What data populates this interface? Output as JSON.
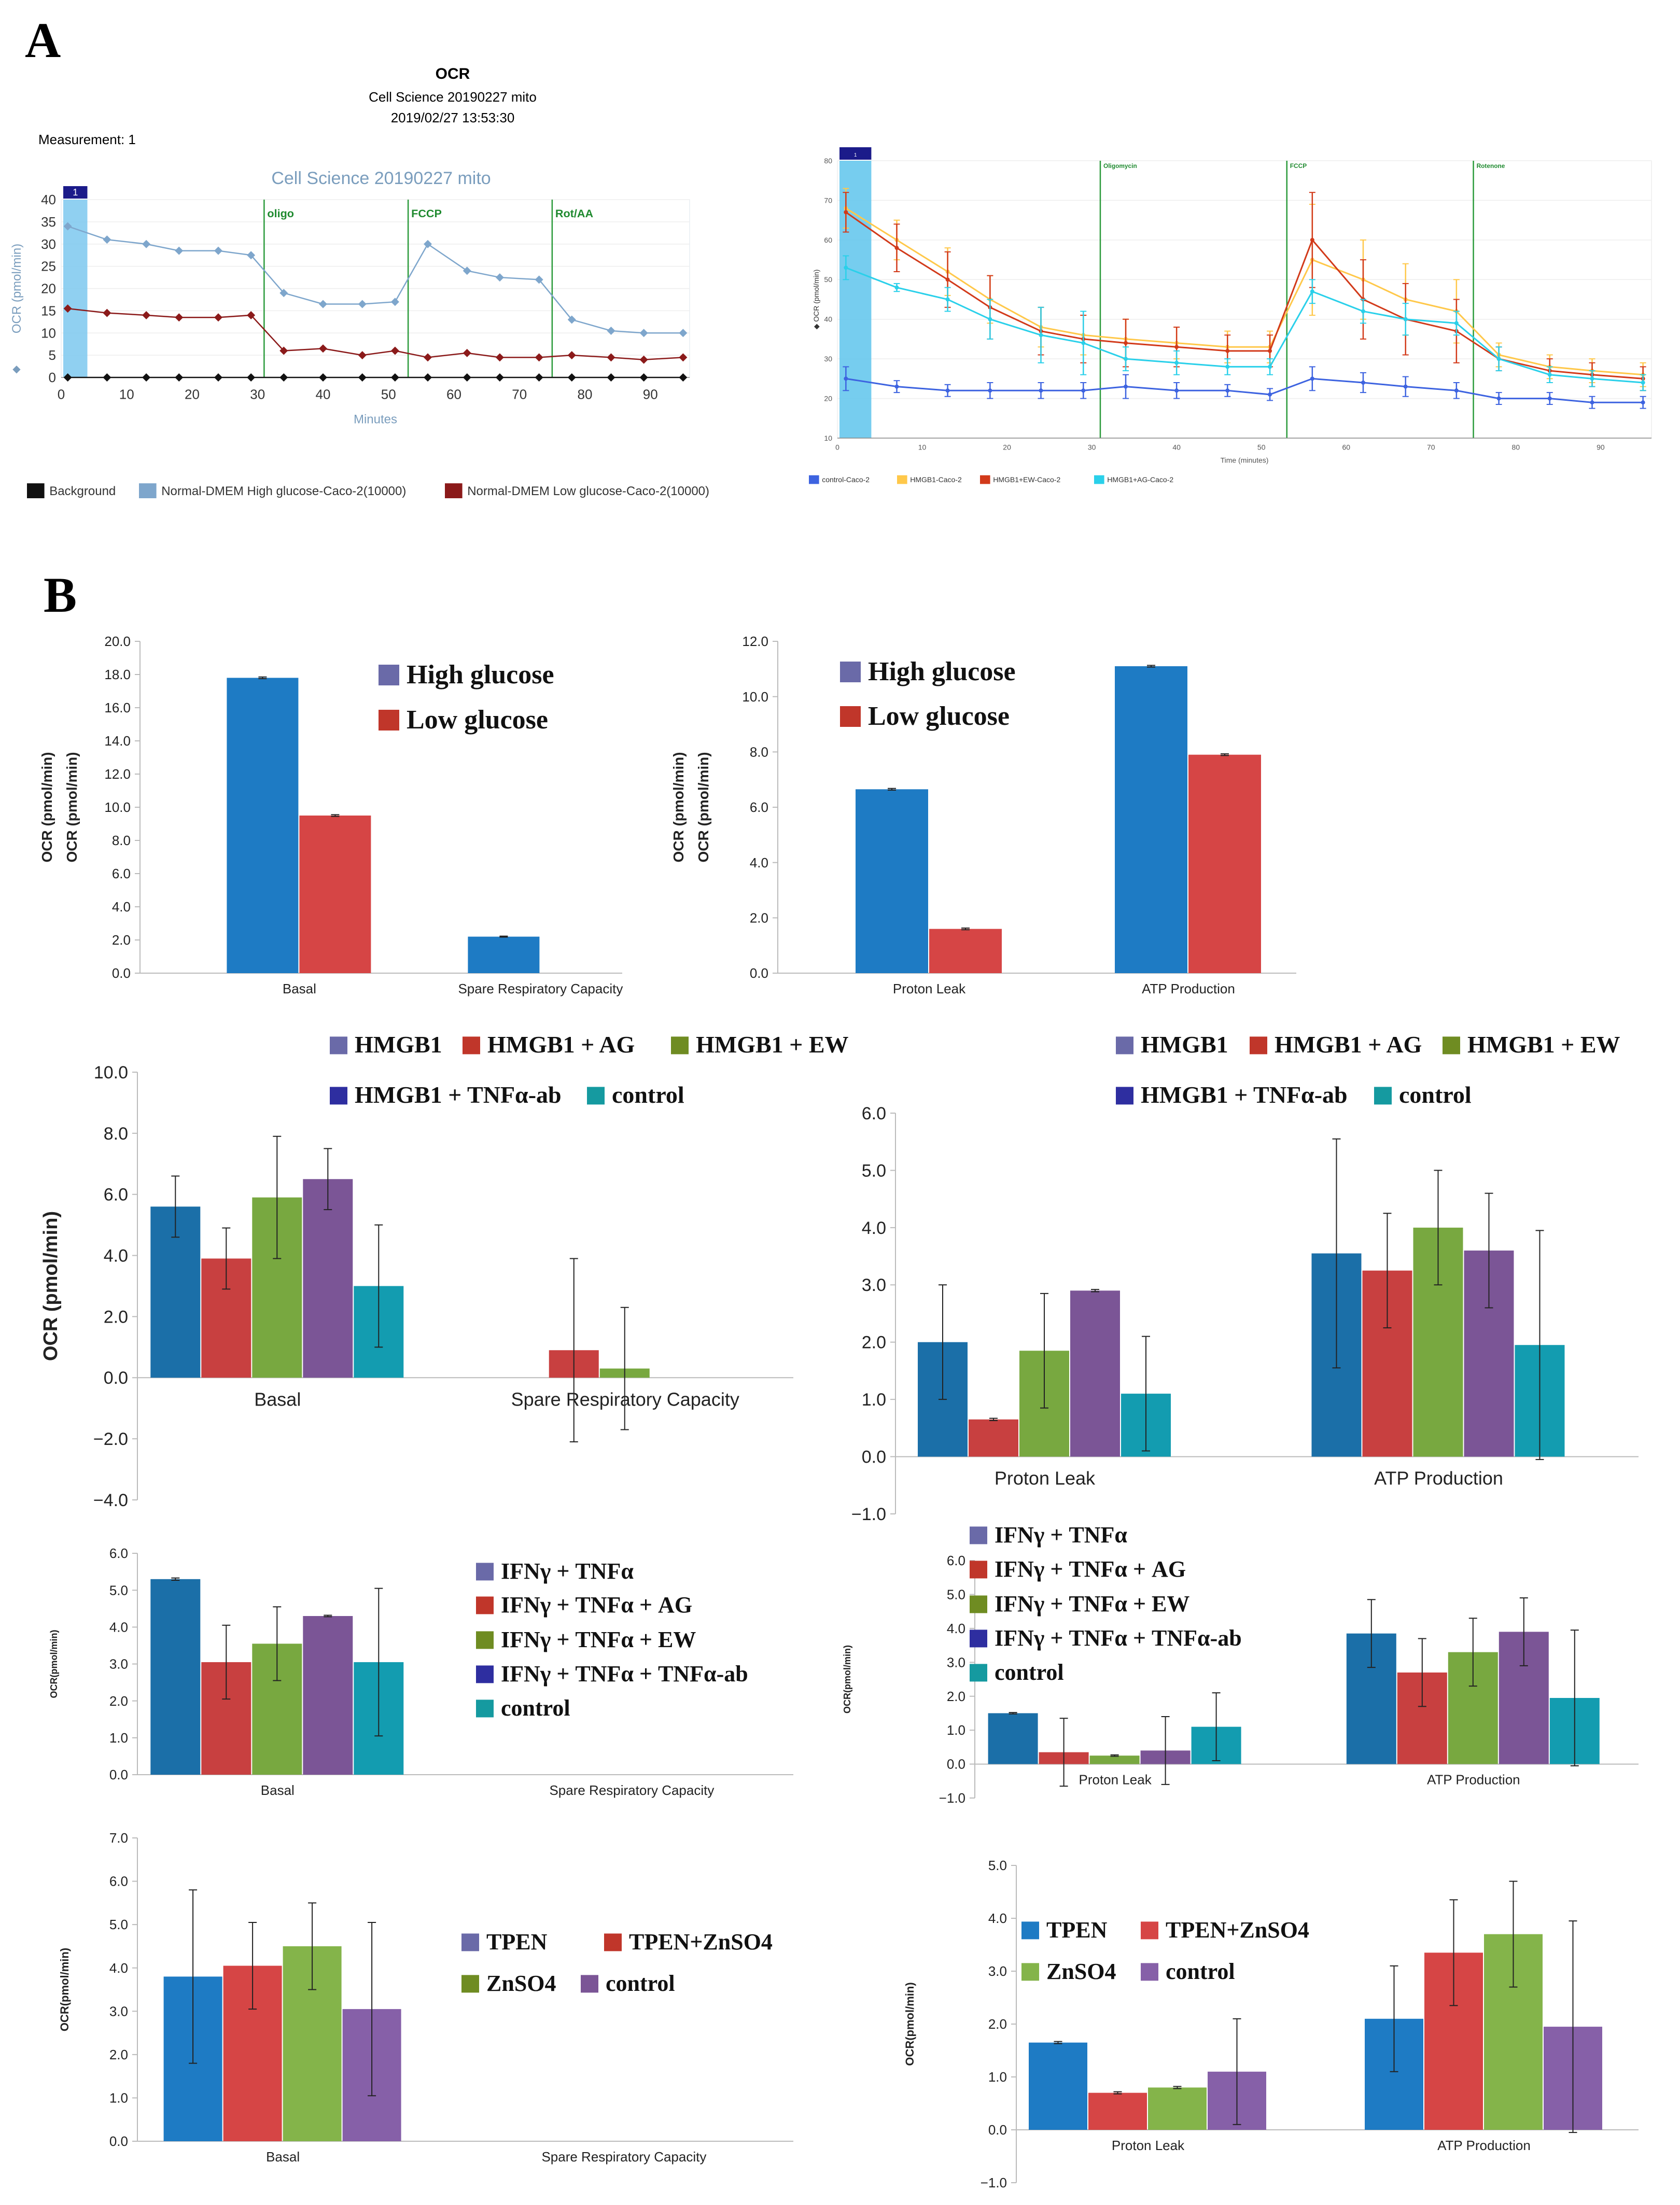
{
  "panel_labels": {
    "a": "A",
    "b": "B"
  },
  "chart_data": [
    {
      "id": "a1",
      "type": "line",
      "header": {
        "title": "OCR",
        "subtitle": "Cell Science 20190227 mito",
        "timestamp": "2019/02/27 13:53:30",
        "measurement": "Measurement: 1"
      },
      "title": "Cell Science 20190227 mito",
      "xlabel": "Minutes",
      "ylabel": "OCR (pmol/min)",
      "xlim": [
        0,
        96
      ],
      "ylim": [
        0,
        40
      ],
      "xticks": [
        0,
        10,
        20,
        30,
        40,
        50,
        60,
        70,
        80,
        90
      ],
      "yticks": [
        0,
        5,
        10,
        15,
        20,
        25,
        30,
        35,
        40
      ],
      "marker_label": "1",
      "injections": [
        {
          "label": "oligo",
          "x": 31
        },
        {
          "label": "FCCP",
          "x": 53
        },
        {
          "label": "Rot/AA",
          "x": 75
        }
      ],
      "x": [
        1,
        7,
        13,
        18,
        24,
        29,
        34,
        40,
        46,
        51,
        56,
        62,
        67,
        73,
        78,
        84,
        89,
        95
      ],
      "series": [
        {
          "name": "Background",
          "color": "#111111",
          "values": [
            0,
            0,
            0,
            0,
            0,
            0,
            0,
            0,
            0,
            0,
            0,
            0,
            0,
            0,
            0,
            0,
            0,
            0
          ]
        },
        {
          "name": "Normal-DMEM High glucose-Caco-2(10000)",
          "color": "#7ea6cc",
          "values": [
            34,
            31,
            30,
            28.5,
            28.5,
            27.5,
            19,
            16.5,
            16.5,
            17,
            30,
            24,
            22.5,
            22,
            13,
            10.5,
            10,
            10
          ]
        },
        {
          "name": "Normal-DMEM Low glucose-Caco-2(10000)",
          "color": "#8b1a1a",
          "values": [
            15.5,
            14.5,
            14,
            13.5,
            13.5,
            14,
            6,
            6.5,
            5,
            6,
            4.5,
            5.5,
            4.5,
            4.5,
            5,
            4.5,
            4,
            4.5
          ]
        }
      ]
    },
    {
      "id": "a2",
      "type": "line",
      "xlabel": "Time (minutes)",
      "ylabel": "OCR (pmol/min)",
      "xlim": [
        0,
        96
      ],
      "ylim": [
        10,
        80
      ],
      "xticks": [
        0,
        10,
        20,
        30,
        40,
        50,
        60,
        70,
        80,
        90
      ],
      "yticks": [
        10,
        20,
        30,
        40,
        50,
        60,
        70,
        80
      ],
      "marker_label": "1",
      "injections": [
        {
          "label": "Oligomycin",
          "x": 31
        },
        {
          "label": "FCCP",
          "x": 53
        },
        {
          "label": "Rotenone",
          "x": 75
        }
      ],
      "x": [
        1,
        7,
        13,
        18,
        24,
        29,
        34,
        40,
        46,
        51,
        56,
        62,
        67,
        73,
        78,
        84,
        89,
        95
      ],
      "series": [
        {
          "name": "control-Caco-2",
          "color": "#3d63e0",
          "values": [
            25,
            23,
            22,
            22,
            22,
            22,
            23,
            22,
            22,
            21,
            25,
            24,
            23,
            22,
            20,
            20,
            19,
            19
          ],
          "err": [
            3,
            1.5,
            1.5,
            2,
            2,
            2,
            3,
            2,
            1.5,
            1.5,
            3,
            2.5,
            2.5,
            2,
            1.5,
            1.5,
            1.5,
            1.5
          ]
        },
        {
          "name": "HMGB1-Caco-2",
          "color": "#ffc84a",
          "values": [
            68,
            60,
            52,
            45,
            38,
            36,
            35,
            34,
            33,
            33,
            55,
            50,
            45,
            42,
            31,
            28,
            27,
            26
          ],
          "err": [
            5,
            5,
            6,
            6,
            5,
            5,
            5,
            4,
            4,
            4,
            14,
            10,
            9,
            8,
            3,
            3,
            3,
            3
          ]
        },
        {
          "name": "HMGB1+EW-Caco-2",
          "color": "#d23a1a",
          "values": [
            67,
            58,
            50,
            43,
            37,
            35,
            34,
            33,
            32,
            32,
            60,
            45,
            40,
            37,
            30,
            27,
            26,
            25
          ],
          "err": [
            5,
            6,
            7,
            8,
            6,
            6,
            6,
            5,
            4,
            4,
            12,
            10,
            9,
            8,
            3,
            3,
            3,
            3
          ]
        },
        {
          "name": "HMGB1+AG-Caco-2",
          "color": "#2ad0ea",
          "values": [
            53,
            48,
            45,
            40,
            36,
            34,
            30,
            29,
            28,
            28,
            47,
            42,
            40,
            39,
            30,
            26,
            25,
            24
          ],
          "err": [
            3,
            1,
            3,
            5,
            7,
            8,
            3,
            3,
            2,
            2,
            3,
            3,
            4,
            3,
            3,
            2,
            2,
            2
          ]
        }
      ]
    },
    {
      "id": "b1",
      "type": "bar",
      "ylabel": "OCR (pmol/min)",
      "ylabel2": "OCR (pmol/min)",
      "ylim": [
        0,
        20
      ],
      "yticks": [
        0,
        2,
        4,
        6,
        8,
        10,
        12,
        14,
        16,
        18,
        20
      ],
      "ytick_labels": [
        "0.0",
        "2.0",
        "4.0",
        "6.0",
        "8.0",
        "10.0",
        "12.0",
        "14.0",
        "16.0",
        "18.0",
        "20.0"
      ],
      "categories": [
        "Basal",
        "Spare Respiratory Capacity"
      ],
      "series": [
        {
          "name": "High glucose",
          "legend_color": "#6a6aa8",
          "color": "#1e7bc4",
          "values": [
            17.8,
            2.2
          ],
          "err": [
            0.05,
            0.03
          ]
        },
        {
          "name": "Low glucose",
          "legend_color": "#c0362a",
          "color": "#d64545",
          "values": [
            9.5,
            0.0
          ],
          "err": [
            0.05,
            0
          ]
        }
      ]
    },
    {
      "id": "b2",
      "type": "bar",
      "ylabel": "OCR (pmol/min)",
      "ylabel2": "OCR (pmol/min)",
      "ylim": [
        0,
        12
      ],
      "yticks": [
        0,
        2,
        4,
        6,
        8,
        10,
        12
      ],
      "ytick_labels": [
        "0.0",
        "2.0",
        "4.0",
        "6.0",
        "8.0",
        "10.0",
        "12.0"
      ],
      "categories": [
        "Proton Leak",
        "ATP Production"
      ],
      "series": [
        {
          "name": "High glucose",
          "legend_color": "#6a6aa8",
          "color": "#1e7bc4",
          "values": [
            6.65,
            11.1
          ],
          "err": [
            0.03,
            0.03
          ]
        },
        {
          "name": "Low glucose",
          "legend_color": "#c0362a",
          "color": "#d64545",
          "values": [
            1.6,
            7.9
          ],
          "err": [
            0.03,
            0.03
          ]
        }
      ]
    },
    {
      "id": "b3",
      "type": "bar",
      "ylabel": "OCR (pmol/min)",
      "ylim": [
        -4,
        10
      ],
      "yticks": [
        -4,
        -2,
        0,
        2,
        4,
        6,
        8,
        10
      ],
      "ytick_labels": [
        "−4.0",
        "−2.0",
        "0.0",
        "2.0",
        "4.0",
        "6.0",
        "8.0",
        "10.0"
      ],
      "categories": [
        "Basal",
        "Spare Respiratory Capacity"
      ],
      "series": [
        {
          "name": "HMGB1",
          "legend_color": "#6a6aa8",
          "color": "#1b6fa8",
          "values": [
            5.6,
            0.0
          ],
          "err": [
            1.0,
            0
          ]
        },
        {
          "name": "HMGB1 + AG",
          "legend_color": "#c0362a",
          "color": "#c84040",
          "values": [
            3.9,
            0.9
          ],
          "err": [
            1.0,
            3.0
          ]
        },
        {
          "name": "HMGB1 + EW",
          "legend_color": "#6f8c22",
          "color": "#78a840",
          "values": [
            5.9,
            0.3
          ],
          "err": [
            2.0,
            2.0
          ]
        },
        {
          "name": "HMGB1 + TNFα-ab",
          "legend_color": "#2e2ea0",
          "color": "#7b5596",
          "values": [
            6.5,
            0.0
          ],
          "err": [
            1.0,
            0
          ]
        },
        {
          "name": "control",
          "legend_color": "#159aa0",
          "color": "#139cb0",
          "values": [
            3.0,
            0.0
          ],
          "err": [
            2.0,
            0
          ]
        }
      ]
    },
    {
      "id": "b4",
      "type": "bar",
      "ylim": [
        -1,
        6
      ],
      "yticks": [
        -1,
        0,
        1,
        2,
        3,
        4,
        5,
        6
      ],
      "ytick_labels": [
        "−1.0",
        "0.0",
        "1.0",
        "2.0",
        "3.0",
        "4.0",
        "5.0",
        "6.0"
      ],
      "categories": [
        "Proton Leak",
        "ATP Production"
      ],
      "series": [
        {
          "name": "HMGB1",
          "legend_color": "#6a6aa8",
          "color": "#1b6fa8",
          "values": [
            2.0,
            3.55
          ],
          "err": [
            1.0,
            2.0
          ]
        },
        {
          "name": "HMGB1 + AG",
          "legend_color": "#c0362a",
          "color": "#c84040",
          "values": [
            0.65,
            3.25
          ],
          "err": [
            0.02,
            1.0
          ]
        },
        {
          "name": "HMGB1 + EW",
          "legend_color": "#6f8c22",
          "color": "#78a840",
          "values": [
            1.85,
            4.0
          ],
          "err": [
            1.0,
            1.0
          ]
        },
        {
          "name": "HMGB1 + TNFα-ab",
          "legend_color": "#2e2ea0",
          "color": "#7b5596",
          "values": [
            2.9,
            3.6
          ],
          "err": [
            0.02,
            1.0
          ]
        },
        {
          "name": "control",
          "legend_color": "#159aa0",
          "color": "#139cb0",
          "values": [
            1.1,
            1.95
          ],
          "err": [
            1.0,
            2.0
          ]
        }
      ]
    },
    {
      "id": "b5",
      "type": "bar",
      "ylabel": "OCR(pmol/min)",
      "ylim": [
        0,
        6
      ],
      "yticks": [
        0,
        1,
        2,
        3,
        4,
        5,
        6
      ],
      "ytick_labels": [
        "0.0",
        "1.0",
        "2.0",
        "3.0",
        "4.0",
        "5.0",
        "6.0"
      ],
      "categories": [
        "Basal",
        "Spare Respiratory Capacity"
      ],
      "series": [
        {
          "name": "IFNγ + TNFα",
          "legend_color": "#6a6aa8",
          "color": "#1b6fa8",
          "values": [
            5.3,
            0
          ],
          "err": [
            0.03,
            0
          ]
        },
        {
          "name": "IFNγ + TNFα + AG",
          "legend_color": "#c0362a",
          "color": "#c84040",
          "values": [
            3.05,
            0
          ],
          "err": [
            1.0,
            0
          ]
        },
        {
          "name": "IFNγ + TNFα + EW",
          "legend_color": "#6f8c22",
          "color": "#78a840",
          "values": [
            3.55,
            0
          ],
          "err": [
            1.0,
            0
          ]
        },
        {
          "name": "IFNγ + TNFα + TNFα-ab",
          "legend_color": "#2e2ea0",
          "color": "#7b5596",
          "values": [
            4.3,
            0
          ],
          "err": [
            0.02,
            0
          ]
        },
        {
          "name": "control",
          "legend_color": "#159aa0",
          "color": "#139cb0",
          "values": [
            3.05,
            0
          ],
          "err": [
            2.0,
            0
          ]
        }
      ]
    },
    {
      "id": "b6",
      "type": "bar",
      "ylabel": "OCR(pmol/min)",
      "ylim": [
        -1,
        6
      ],
      "yticks": [
        -1,
        0,
        1,
        2,
        3,
        4,
        5,
        6
      ],
      "ytick_labels": [
        "−1.0",
        "0.0",
        "1.0",
        "2.0",
        "3.0",
        "4.0",
        "5.0",
        "6.0"
      ],
      "categories": [
        "Proton Leak",
        "ATP Production"
      ],
      "series": [
        {
          "name": "IFNγ + TNFα",
          "legend_color": "#6a6aa8",
          "color": "#1b6fa8",
          "values": [
            1.5,
            3.85
          ],
          "err": [
            0.02,
            1.0
          ]
        },
        {
          "name": "IFNγ + TNFα + AG",
          "legend_color": "#c0362a",
          "color": "#c84040",
          "values": [
            0.35,
            2.7
          ],
          "err": [
            1.0,
            1.0
          ]
        },
        {
          "name": "IFNγ + TNFα + EW",
          "legend_color": "#6f8c22",
          "color": "#78a840",
          "values": [
            0.25,
            3.3
          ],
          "err": [
            0.02,
            1.0
          ]
        },
        {
          "name": "IFNγ + TNFα + TNFα-ab",
          "legend_color": "#2e2ea0",
          "color": "#7b5596",
          "values": [
            0.4,
            3.9
          ],
          "err": [
            1.0,
            1.0
          ]
        },
        {
          "name": "control",
          "legend_color": "#159aa0",
          "color": "#139cb0",
          "values": [
            1.1,
            1.95
          ],
          "err": [
            1.0,
            2.0
          ]
        }
      ]
    },
    {
      "id": "b7",
      "type": "bar",
      "ylabel": "OCR(pmol/min)",
      "ylim": [
        0,
        7
      ],
      "yticks": [
        0,
        1,
        2,
        3,
        4,
        5,
        6,
        7
      ],
      "ytick_labels": [
        "0.0",
        "1.0",
        "2.0",
        "3.0",
        "4.0",
        "5.0",
        "6.0",
        "7.0"
      ],
      "categories": [
        "Basal",
        "Spare Respiratory Capacity"
      ],
      "series": [
        {
          "name": "TPEN",
          "legend_color": "#6a6aa8",
          "color": "#1e7bc4",
          "values": [
            3.8,
            0
          ],
          "err": [
            2.0,
            0
          ]
        },
        {
          "name": "TPEN+ZnSO4",
          "legend_color": "#c0362a",
          "color": "#d64545",
          "values": [
            4.05,
            0
          ],
          "err": [
            1.0,
            0
          ]
        },
        {
          "name": "ZnSO4",
          "legend_color": "#6f8c22",
          "color": "#84b44a",
          "values": [
            4.5,
            0
          ],
          "err": [
            1.0,
            0
          ]
        },
        {
          "name": "control",
          "legend_color": "#7b5596",
          "color": "#8660a8",
          "values": [
            3.05,
            0
          ],
          "err": [
            2.0,
            0
          ]
        }
      ]
    },
    {
      "id": "b8",
      "type": "bar",
      "ylabel": "OCR(pmol/min)",
      "ylim": [
        -1,
        5
      ],
      "yticks": [
        -1,
        0,
        1,
        2,
        3,
        4,
        5
      ],
      "ytick_labels": [
        "−1.0",
        "0.0",
        "1.0",
        "2.0",
        "3.0",
        "4.0",
        "5.0"
      ],
      "categories": [
        "Proton Leak",
        "ATP Production"
      ],
      "series": [
        {
          "name": "TPEN",
          "legend_color": "#1e7bc4",
          "color": "#1e7bc4",
          "values": [
            1.65,
            2.1
          ],
          "err": [
            0.02,
            1.0
          ]
        },
        {
          "name": "TPEN+ZnSO4",
          "legend_color": "#d64545",
          "color": "#d64545",
          "values": [
            0.7,
            3.35
          ],
          "err": [
            0.02,
            1.0
          ]
        },
        {
          "name": "ZnSO4",
          "legend_color": "#84b44a",
          "color": "#84b44a",
          "values": [
            0.8,
            3.7
          ],
          "err": [
            0.02,
            1.0
          ]
        },
        {
          "name": "control",
          "legend_color": "#8660a8",
          "color": "#8660a8",
          "values": [
            1.1,
            1.95
          ],
          "err": [
            1.0,
            2.0
          ]
        }
      ]
    }
  ]
}
